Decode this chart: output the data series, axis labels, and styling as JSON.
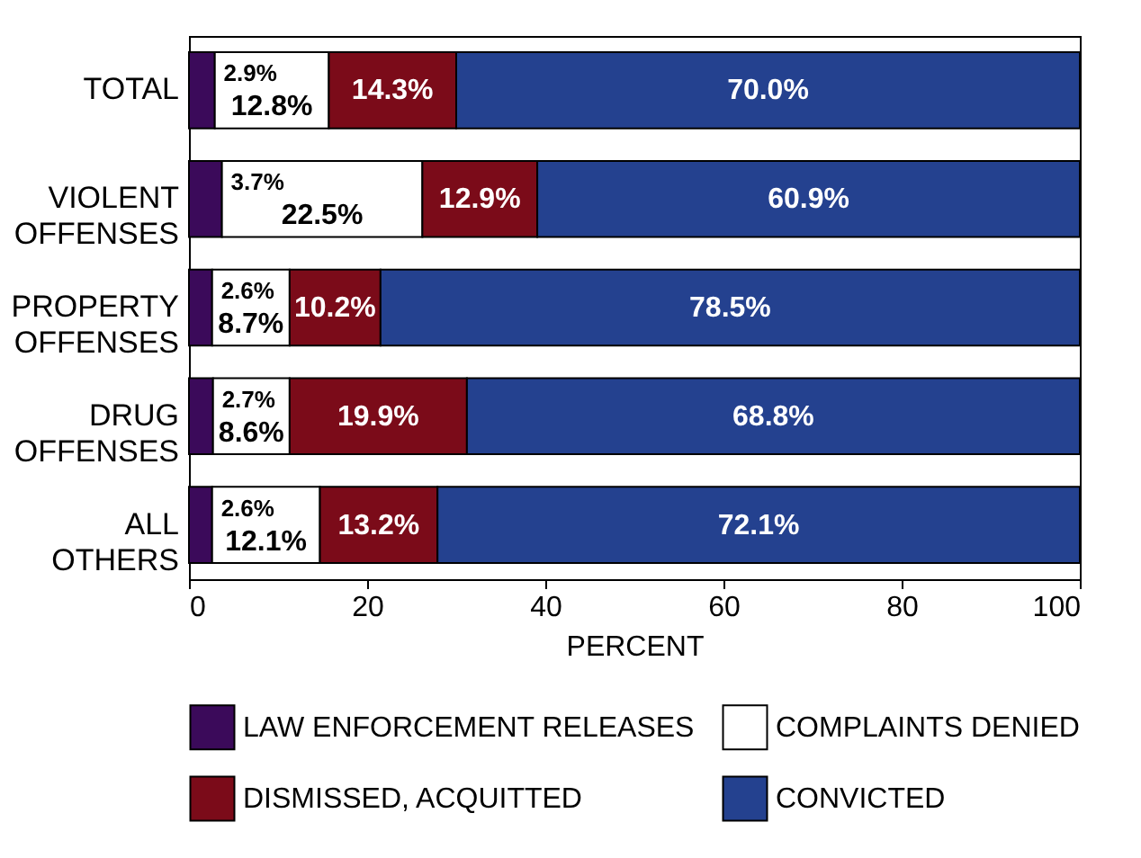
{
  "chart_data": {
    "type": "bar",
    "orientation": "horizontal",
    "stacked": true,
    "xlabel": "PERCENT",
    "categories": [
      "TOTAL",
      "VIOLENT OFFENSES",
      "PROPERTY OFFENSES",
      "DRUG OFFENSES",
      "ALL OTHERS"
    ],
    "series": [
      {
        "name": "LAW ENFORCEMENT RELEASES",
        "color": "#3b0a5a",
        "values": [
          2.9,
          3.7,
          2.6,
          2.7,
          2.6
        ],
        "value_labels": [
          "2.9%",
          "3.7%",
          "2.6%",
          "2.7%",
          "2.6%"
        ]
      },
      {
        "name": "COMPLAINTS DENIED",
        "color": "#ffffff",
        "values": [
          12.8,
          22.5,
          8.7,
          8.6,
          12.1
        ],
        "value_labels": [
          "12.8%",
          "22.5%",
          "8.7%",
          "8.6%",
          "12.1%"
        ]
      },
      {
        "name": "DISMISSED, ACQUITTED",
        "color": "#7b0b19",
        "values": [
          14.3,
          12.9,
          10.2,
          19.9,
          13.2
        ],
        "value_labels": [
          "14.3%",
          "12.9%",
          "10.2%",
          "19.9%",
          "13.2%"
        ]
      },
      {
        "name": "CONVICTED",
        "color": "#24418f",
        "values": [
          70.0,
          60.9,
          78.5,
          68.8,
          72.1
        ],
        "value_labels": [
          "70.0%",
          "60.9%",
          "78.5%",
          "68.8%",
          "72.1%"
        ]
      }
    ],
    "xlim": [
      0,
      100
    ],
    "xticks": [
      0,
      20,
      40,
      60,
      80,
      100
    ],
    "grid": false,
    "legend": "bottom"
  }
}
